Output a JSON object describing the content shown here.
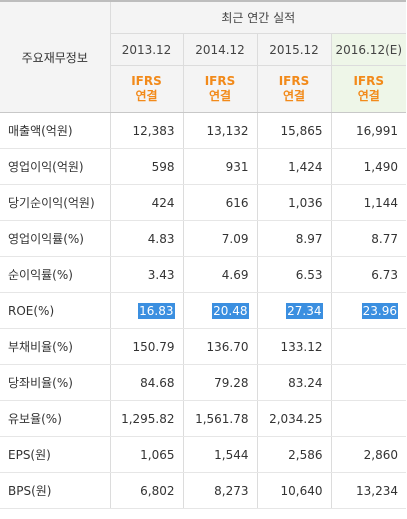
{
  "header": {
    "label": "주요재무정보",
    "period": "최근 연간 실적",
    "years": [
      "2013.12",
      "2014.12",
      "2015.12",
      "2016.12(E)"
    ],
    "ifrs_line1": "IFRS",
    "ifrs_line2": "연결"
  },
  "rows": [
    {
      "label": "매출액(억원)",
      "values": [
        "12,383",
        "13,132",
        "15,865",
        "16,991"
      ]
    },
    {
      "label": "영업이익(억원)",
      "values": [
        "598",
        "931",
        "1,424",
        "1,490"
      ]
    },
    {
      "label": "당기순이익(억원)",
      "values": [
        "424",
        "616",
        "1,036",
        "1,144"
      ]
    },
    {
      "label": "영업이익률(%)",
      "values": [
        "4.83",
        "7.09",
        "8.97",
        "8.77"
      ]
    },
    {
      "label": "순이익률(%)",
      "values": [
        "3.43",
        "4.69",
        "6.53",
        "6.73"
      ]
    },
    {
      "label": "ROE(%)",
      "values": [
        "16.83",
        "20.48",
        "27.34",
        "23.96"
      ]
    },
    {
      "label": "부채비율(%)",
      "values": [
        "150.79",
        "136.70",
        "133.12",
        ""
      ]
    },
    {
      "label": "당좌비율(%)",
      "values": [
        "84.68",
        "79.28",
        "83.24",
        ""
      ]
    },
    {
      "label": "유보율(%)",
      "values": [
        "1,295.82",
        "1,561.78",
        "2,034.25",
        ""
      ]
    },
    {
      "label": "EPS(원)",
      "values": [
        "1,065",
        "1,544",
        "2,586",
        "2,860"
      ]
    },
    {
      "label": "BPS(원)",
      "values": [
        "6,802",
        "8,273",
        "10,640",
        "13,234"
      ]
    }
  ],
  "colors": {
    "ifrs_text": "#f28a1a",
    "header_bg": "#f4f4f4",
    "estimate_bg": "#eef6e8",
    "selection_bg": "#3b8fe0"
  }
}
